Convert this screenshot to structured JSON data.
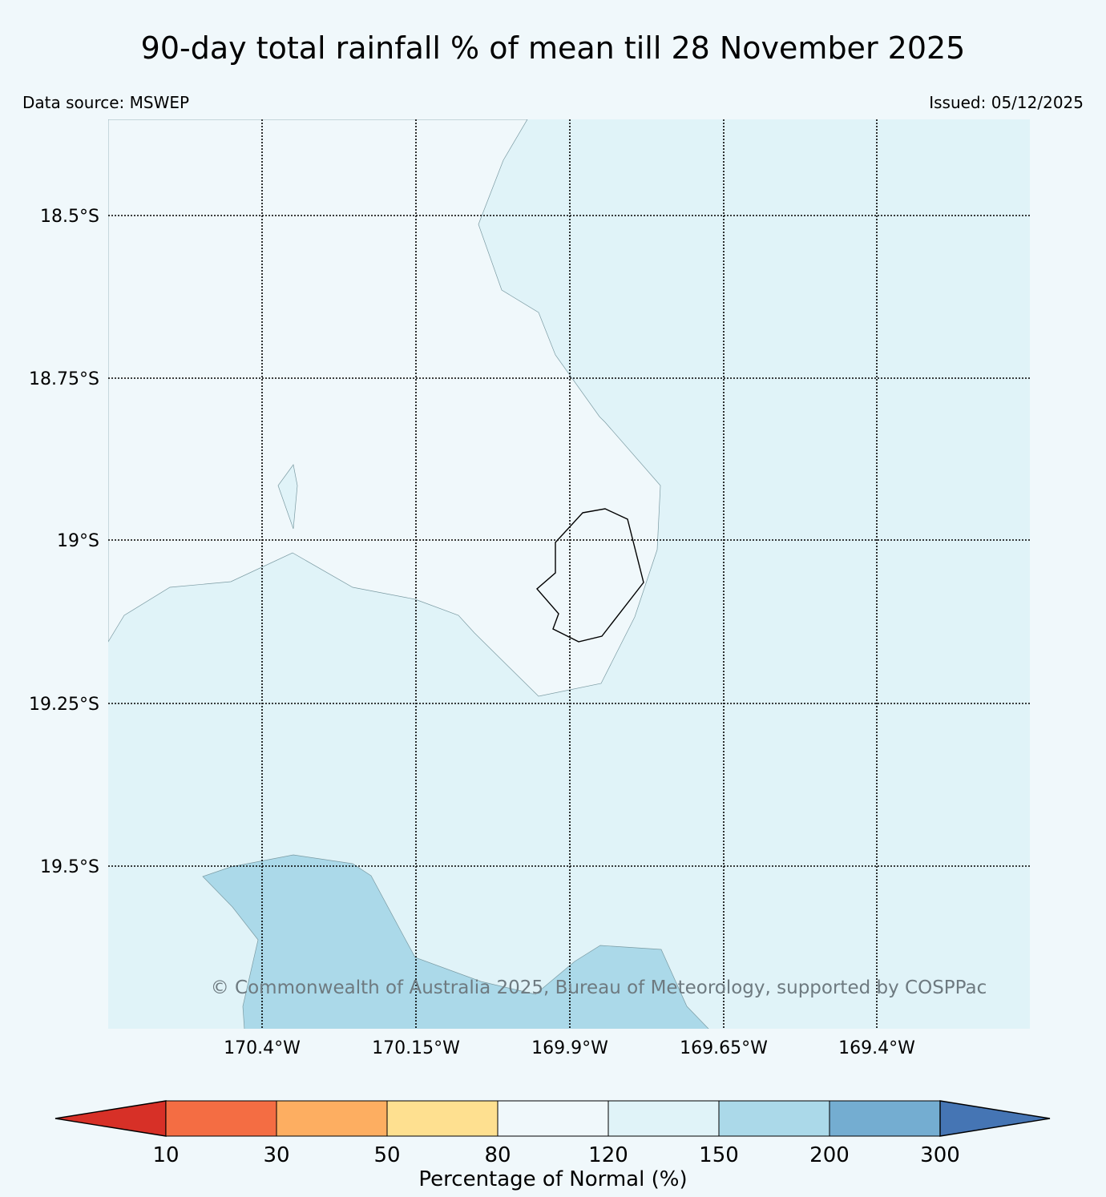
{
  "title": "90-day total rainfall % of mean till 28 November 2025",
  "data_source": "Data source: MSWEP",
  "issued": "Issued: 05/12/2025",
  "copyright": "© Commonwealth of Australia 2025, Bureau of Meteorology, supported by COSPPac",
  "lat_labels": [
    "18.5°S",
    "18.75°S",
    "19°S",
    "19.25°S",
    "19.5°S"
  ],
  "lon_labels": [
    "170.4°W",
    "170.15°W",
    "169.9°W",
    "169.65°W",
    "169.4°W"
  ],
  "colorbar": {
    "label": "Percentage of Normal (%)",
    "ticks": [
      "10",
      "30",
      "50",
      "80",
      "120",
      "150",
      "200",
      "300"
    ],
    "colors": [
      "#d73027",
      "#f46d43",
      "#fdae61",
      "#fee090",
      "#f0f8fb",
      "#e0f3f8",
      "#abd9e9",
      "#74add1",
      "#4575b4"
    ]
  },
  "colors": {
    "background": "#f0f8fb",
    "class_120_150": "#e0f3f8",
    "class_150_200": "#abd9e9"
  }
}
